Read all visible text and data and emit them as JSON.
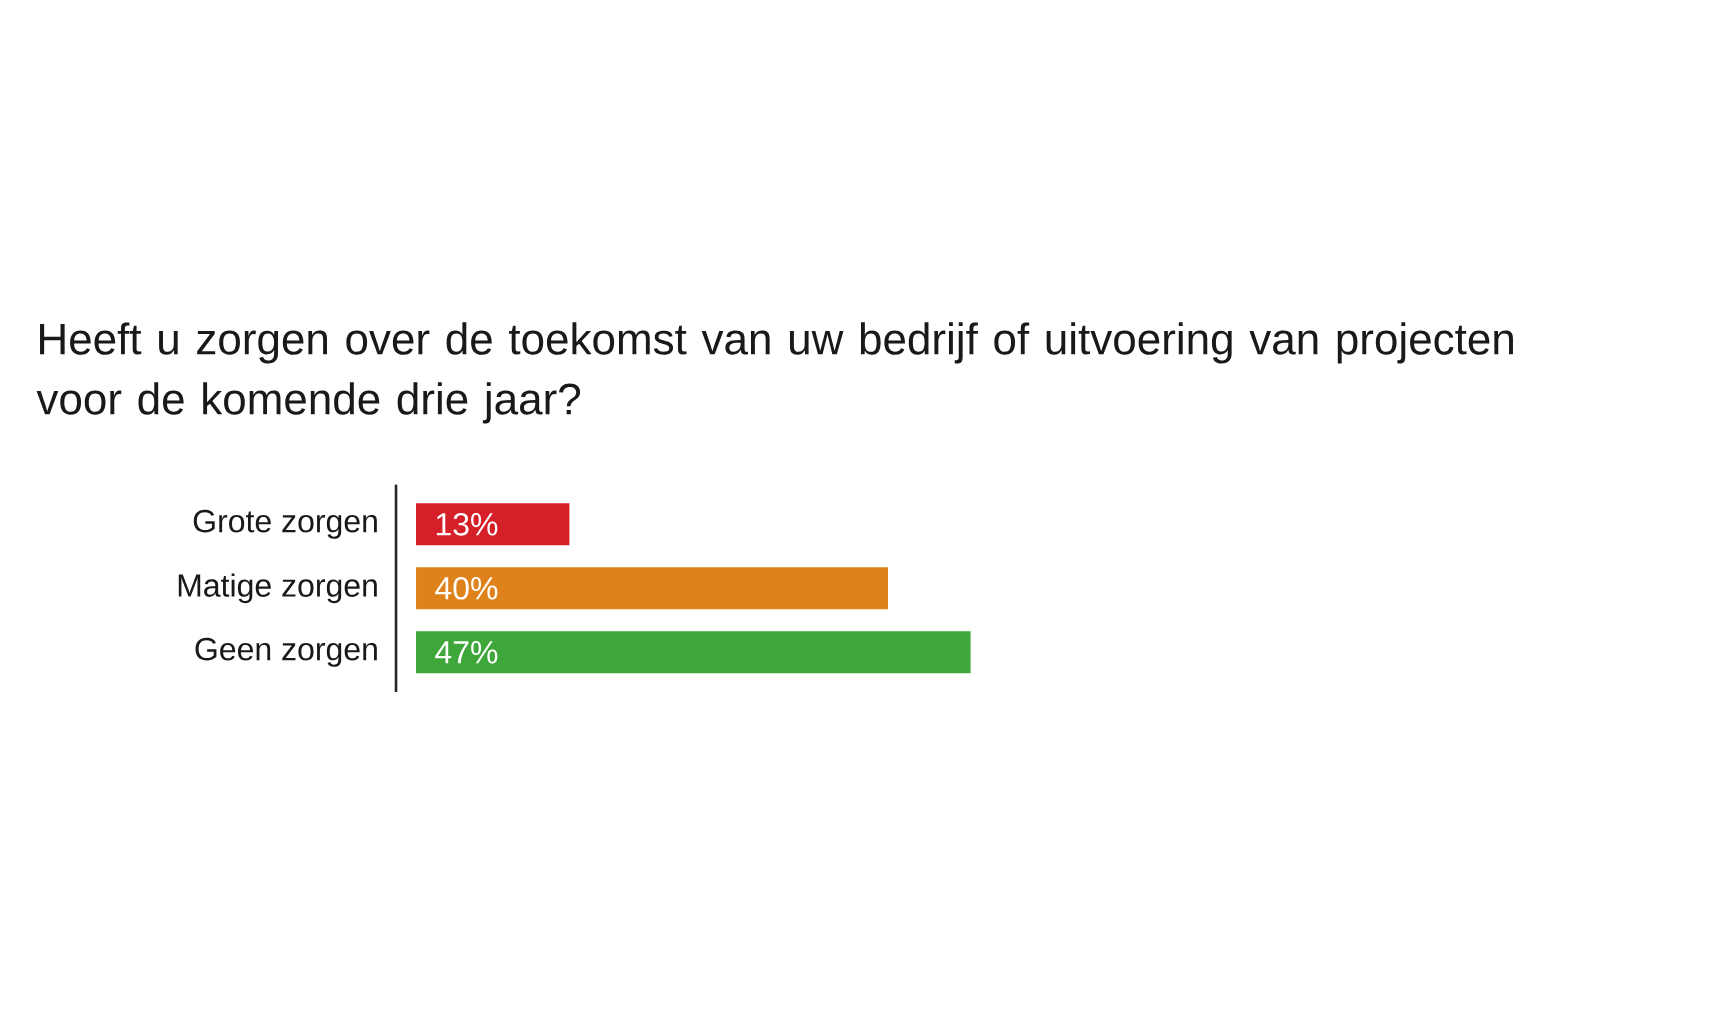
{
  "chart_data": {
    "type": "bar",
    "orientation": "horizontal",
    "title": "Heeft u zorgen over de toekomst van uw bedrijf of uitvoering van projecten voor de komende drie jaar?",
    "categories": [
      "Grote zorgen",
      "Matige zorgen",
      "Geen zorgen"
    ],
    "values": [
      13,
      40,
      47
    ],
    "colors": [
      "#d5202a",
      "#e0821c",
      "#3fa63a"
    ],
    "value_labels": [
      "13%",
      "40%",
      "47%"
    ]
  }
}
